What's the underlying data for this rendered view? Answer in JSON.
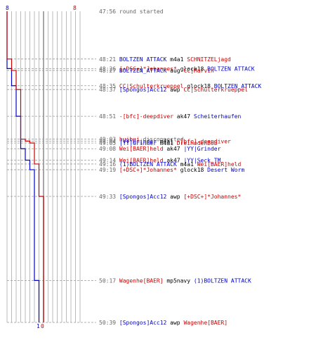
{
  "chart_data": {
    "type": "line",
    "title": "",
    "colors": {
      "red": "#cc0000",
      "blue": "#0000cc",
      "grey": "#666666",
      "grid": "#bbbbbb"
    },
    "start_red": 8,
    "start_blue": 8,
    "end_red": 0,
    "end_blue": 1,
    "events": [
      {
        "time": "47:56",
        "parts": [
          {
            "text": "round started",
            "c": "grey"
          }
        ]
      },
      {
        "time": "48:21",
        "parts": [
          {
            "text": "BOLTZEN ATTACK",
            "c": "blue"
          },
          {
            "text": " m4a1 ",
            "c": "black"
          },
          {
            "text": "SCHNITZELjagd",
            "c": "red"
          }
        ]
      },
      {
        "time": "48:26",
        "parts": [
          {
            "text": "[+DSC+]*Johannes*",
            "c": "red"
          },
          {
            "text": " glock18 ",
            "c": "black"
          },
          {
            "text": "BOLTZEN ATTACK",
            "c": "blue"
          }
        ]
      },
      {
        "time": "48:27",
        "parts": [
          {
            "text": "BOLTZEN_ATTACK",
            "c": "blue"
          },
          {
            "text": " aug ",
            "c": "black"
          },
          {
            "text": "CC|Marvin",
            "c": "red"
          }
        ]
      },
      {
        "time": "48:35",
        "parts": [
          {
            "text": "CC|Schulterkrueppel",
            "c": "red"
          },
          {
            "text": " glock18 ",
            "c": "black"
          },
          {
            "text": "BOLTZEN_ATTACK",
            "c": "blue"
          }
        ]
      },
      {
        "time": "48:37",
        "parts": [
          {
            "text": "[Spongos]Acc12",
            "c": "blue"
          },
          {
            "text": " awp ",
            "c": "black"
          },
          {
            "text": "CC|Schulterkrueppel",
            "c": "red"
          }
        ]
      },
      {
        "time": "48:51",
        "parts": [
          {
            "text": "-[bfc]-deepdiver",
            "c": "red"
          },
          {
            "text": " ak47 ",
            "c": "black"
          },
          {
            "text": "Scheiterhaufen",
            "c": "blue"
          }
        ]
      },
      {
        "time": "49:03",
        "parts": [
          {
            "text": "huibui",
            "c": "red"
          },
          {
            "text": " disconnected",
            "c": "grey"
          }
        ]
      },
      {
        "time": "49:04",
        "parts": [
          {
            "text": "|YY|Grinder",
            "c": "blue"
          },
          {
            "text": " m4a1 ",
            "c": "black"
          },
          {
            "text": "-[bfc]-deepdiver",
            "c": "red"
          }
        ]
      },
      {
        "time": "49:05",
        "parts": [
          {
            "text": "|YY|Grinder",
            "c": "blue"
          },
          {
            "text": " m4a1 ",
            "c": "black"
          },
          {
            "text": "DreiHodenBob",
            "c": "red"
          }
        ]
      },
      {
        "time": "49:08",
        "parts": [
          {
            "text": "Wei[BAER]held",
            "c": "red"
          },
          {
            "text": " ak47 ",
            "c": "black"
          },
          {
            "text": "|YY|Grinder",
            "c": "blue"
          }
        ]
      },
      {
        "time": "49:14",
        "parts": [
          {
            "text": "Wei[BAER]held",
            "c": "red"
          },
          {
            "text": " ak47 ",
            "c": "black"
          },
          {
            "text": "|YY|Seck_TM",
            "c": "blue"
          }
        ]
      },
      {
        "time": "49:16",
        "parts": [
          {
            "text": "(1)BOLTZEN ATTACK",
            "c": "blue"
          },
          {
            "text": " m4a1 ",
            "c": "black"
          },
          {
            "text": "Wei[BAER]held",
            "c": "red"
          }
        ]
      },
      {
        "time": "49:19",
        "parts": [
          {
            "text": "[+DSC+]*Johannes*",
            "c": "red"
          },
          {
            "text": " glock18 ",
            "c": "black"
          },
          {
            "text": "Desert Worm",
            "c": "blue"
          }
        ]
      },
      {
        "time": "49:33",
        "parts": [
          {
            "text": "[Spongos]Acc12",
            "c": "blue"
          },
          {
            "text": " awp ",
            "c": "black"
          },
          {
            "text": "[+DSC+]*Johannes*",
            "c": "red"
          }
        ]
      },
      {
        "time": "50:17",
        "parts": [
          {
            "text": "Wagenhe[BAER]",
            "c": "red"
          },
          {
            "text": " mp5navy ",
            "c": "black"
          },
          {
            "text": "(1)BOLTZEN ATTACK",
            "c": "blue"
          }
        ]
      },
      {
        "time": "50:39",
        "parts": [
          {
            "text": "[Spongos]Acc12",
            "c": "blue"
          },
          {
            "text": " awp ",
            "c": "black"
          },
          {
            "text": "Wagenhe[BAER]",
            "c": "red"
          }
        ]
      }
    ],
    "blue_alive": [
      8,
      8,
      7,
      7,
      6,
      6,
      5,
      5,
      5,
      5,
      4,
      3,
      3,
      2,
      2,
      1,
      1
    ],
    "red_alive": [
      8,
      7,
      7,
      6,
      6,
      5,
      5,
      4,
      3,
      2,
      2,
      2,
      1,
      1,
      0,
      0,
      0
    ]
  }
}
